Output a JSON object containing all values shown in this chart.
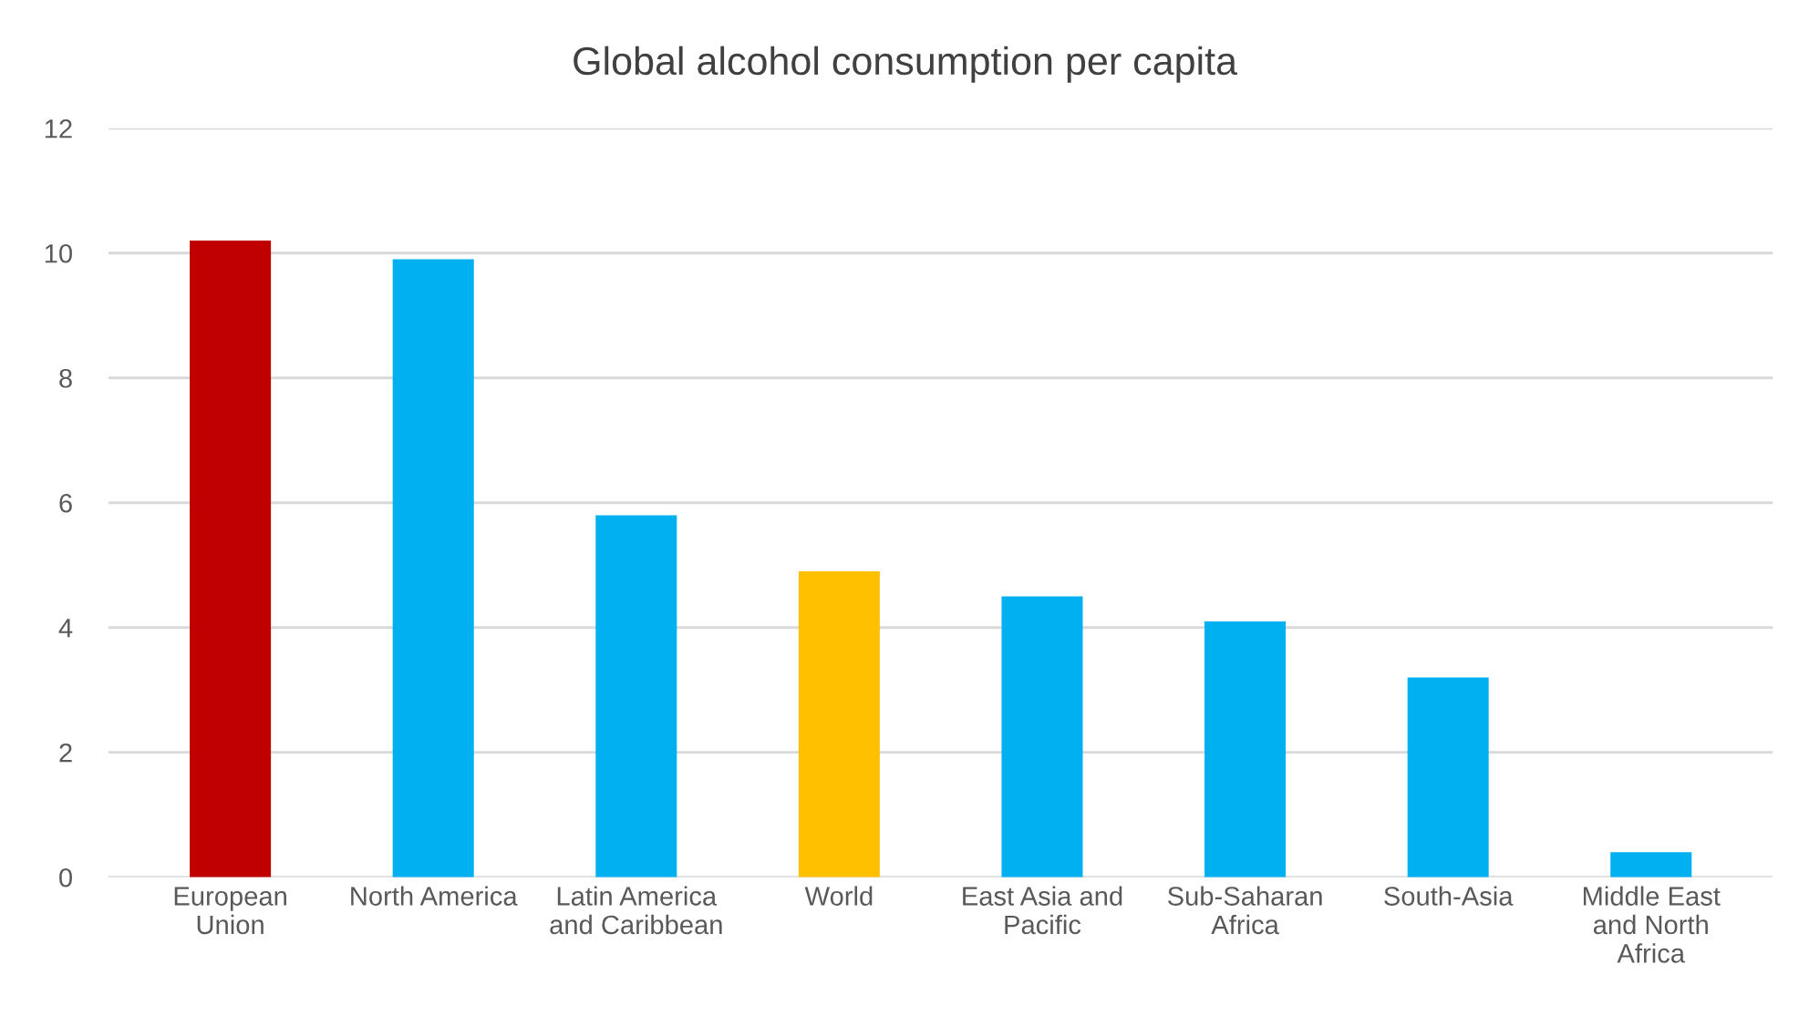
{
  "chart_data": {
    "type": "bar",
    "title": "Global alcohol consumption per capita",
    "categories": [
      "European Union",
      "North America",
      "Latin America and Caribbean",
      "World",
      "East Asia and Pacific",
      "Sub-Saharan Africa",
      "South-Asia",
      "Middle East and North Africa"
    ],
    "values": [
      10.2,
      9.9,
      5.8,
      4.9,
      4.5,
      4.1,
      3.2,
      0.4
    ],
    "colors": [
      "#c00000",
      "#00b0f0",
      "#00b0f0",
      "#ffc000",
      "#00b0f0",
      "#00b0f0",
      "#00b0f0",
      "#00b0f0"
    ],
    "ylim": [
      0,
      12
    ],
    "yticks": [
      0,
      2,
      4,
      6,
      8,
      10,
      12
    ],
    "grid": "y",
    "legend": false
  }
}
